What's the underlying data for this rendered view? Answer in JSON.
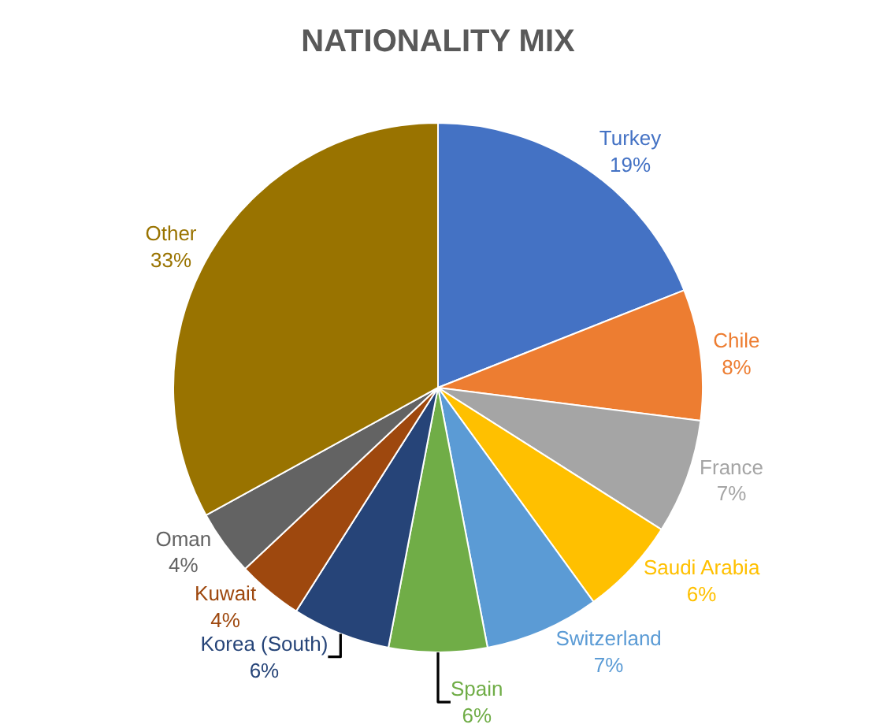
{
  "chart_data": {
    "type": "pie",
    "title": "NATIONALITY MIX",
    "categories": [
      "Turkey",
      "Chile",
      "France",
      "Saudi Arabia",
      "Switzerland",
      "Spain",
      "Korea (South)",
      "Kuwait",
      "Oman",
      "Other"
    ],
    "values": [
      19,
      8,
      7,
      6,
      7,
      6,
      6,
      4,
      4,
      33
    ],
    "value_labels": [
      "19%",
      "8%",
      "7%",
      "6%",
      "7%",
      "6%",
      "6%",
      "4%",
      "4%",
      "33%"
    ],
    "colors": [
      "#4472c4",
      "#ed7d31",
      "#a5a5a5",
      "#ffc000",
      "#5b9bd5",
      "#70ad47",
      "#264478",
      "#9e480e",
      "#636363",
      "#997300"
    ],
    "legend": false
  }
}
